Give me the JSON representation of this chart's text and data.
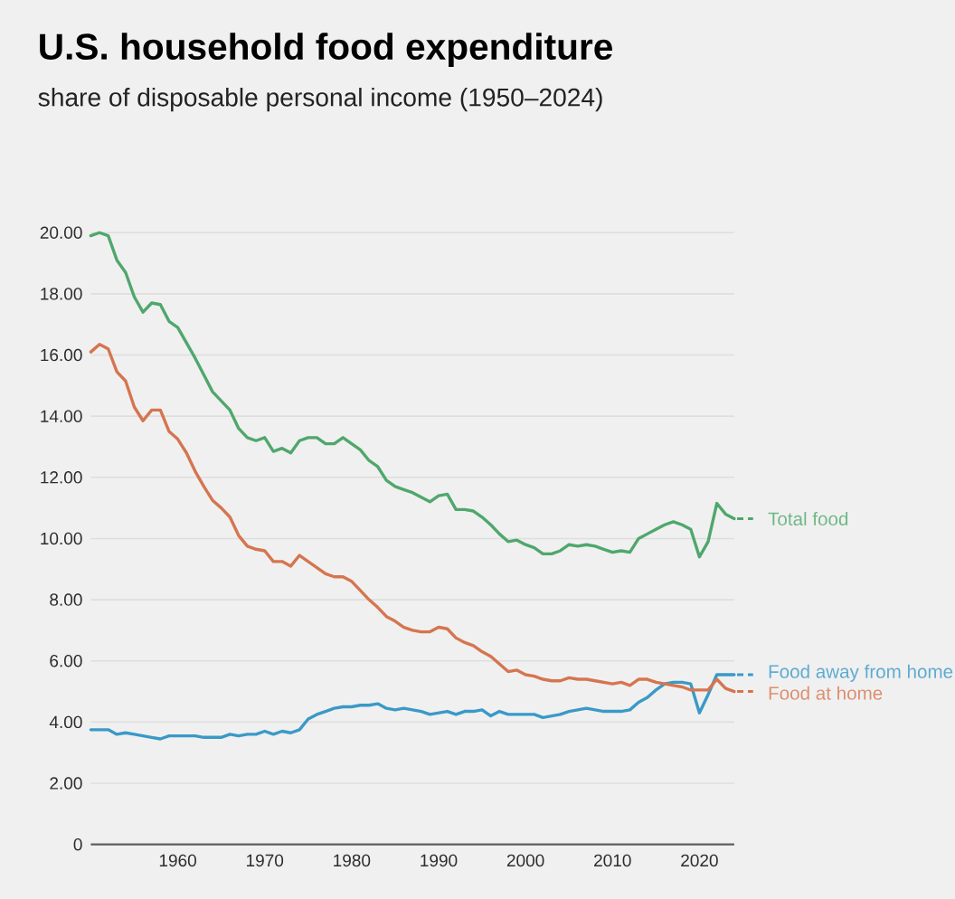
{
  "chart_data": {
    "type": "line",
    "title": "U.S. household food expenditure",
    "subtitle": "share of disposable personal income (1950–2024)",
    "x": [
      1950,
      1951,
      1952,
      1953,
      1954,
      1955,
      1956,
      1957,
      1958,
      1959,
      1960,
      1961,
      1962,
      1963,
      1964,
      1965,
      1966,
      1967,
      1968,
      1969,
      1970,
      1971,
      1972,
      1973,
      1974,
      1975,
      1976,
      1977,
      1978,
      1979,
      1980,
      1981,
      1982,
      1983,
      1984,
      1985,
      1986,
      1987,
      1988,
      1989,
      1990,
      1991,
      1992,
      1993,
      1994,
      1995,
      1996,
      1997,
      1998,
      1999,
      2000,
      2001,
      2002,
      2003,
      2004,
      2005,
      2006,
      2007,
      2008,
      2009,
      2010,
      2011,
      2012,
      2013,
      2014,
      2015,
      2016,
      2017,
      2018,
      2019,
      2020,
      2021,
      2022,
      2023,
      2024
    ],
    "series": [
      {
        "name": "Total food",
        "color": "#4fa76c",
        "values": [
          19.9,
          20.0,
          19.9,
          19.1,
          18.7,
          17.9,
          17.4,
          17.7,
          17.65,
          17.1,
          16.9,
          16.4,
          15.9,
          15.35,
          14.8,
          14.5,
          14.2,
          13.6,
          13.3,
          13.2,
          13.3,
          12.85,
          12.95,
          12.8,
          13.2,
          13.3,
          13.3,
          13.1,
          13.1,
          13.3,
          13.1,
          12.9,
          12.55,
          12.35,
          11.9,
          11.7,
          11.6,
          11.5,
          11.35,
          11.2,
          11.4,
          11.45,
          10.95,
          10.95,
          10.9,
          10.7,
          10.45,
          10.15,
          9.9,
          9.95,
          9.8,
          9.7,
          9.5,
          9.5,
          9.6,
          9.8,
          9.75,
          9.8,
          9.75,
          9.65,
          9.55,
          9.6,
          9.55,
          10.0,
          10.15,
          10.3,
          10.45,
          10.55,
          10.45,
          10.3,
          9.4,
          9.9,
          11.15,
          10.8,
          10.65
        ]
      },
      {
        "name": "Food away from home",
        "color": "#3a99c7",
        "values": [
          3.75,
          3.75,
          3.75,
          3.6,
          3.65,
          3.6,
          3.55,
          3.5,
          3.45,
          3.55,
          3.55,
          3.55,
          3.55,
          3.5,
          3.5,
          3.5,
          3.6,
          3.55,
          3.6,
          3.6,
          3.7,
          3.6,
          3.7,
          3.65,
          3.75,
          4.1,
          4.25,
          4.35,
          4.45,
          4.5,
          4.5,
          4.55,
          4.55,
          4.6,
          4.45,
          4.4,
          4.45,
          4.4,
          4.35,
          4.25,
          4.3,
          4.35,
          4.25,
          4.35,
          4.35,
          4.4,
          4.2,
          4.35,
          4.25,
          4.25,
          4.25,
          4.25,
          4.15,
          4.2,
          4.25,
          4.35,
          4.4,
          4.45,
          4.4,
          4.35,
          4.35,
          4.35,
          4.4,
          4.65,
          4.8,
          5.05,
          5.25,
          5.3,
          5.3,
          5.25,
          4.3,
          4.9,
          5.55,
          5.55,
          5.55
        ]
      },
      {
        "name": "Food at home",
        "color": "#d5754f",
        "values": [
          16.1,
          16.35,
          16.2,
          15.45,
          15.15,
          14.3,
          13.85,
          14.2,
          14.2,
          13.5,
          13.25,
          12.8,
          12.2,
          11.7,
          11.25,
          11.0,
          10.7,
          10.1,
          9.75,
          9.65,
          9.6,
          9.25,
          9.25,
          9.1,
          9.45,
          9.25,
          9.05,
          8.85,
          8.75,
          8.75,
          8.6,
          8.3,
          8.0,
          7.75,
          7.45,
          7.3,
          7.1,
          7.0,
          6.95,
          6.95,
          7.1,
          7.05,
          6.75,
          6.6,
          6.5,
          6.3,
          6.15,
          5.9,
          5.65,
          5.7,
          5.55,
          5.5,
          5.4,
          5.35,
          5.35,
          5.45,
          5.4,
          5.4,
          5.35,
          5.3,
          5.25,
          5.3,
          5.2,
          5.4,
          5.4,
          5.3,
          5.25,
          5.2,
          5.15,
          5.05,
          5.05,
          5.05,
          5.4,
          5.1,
          5.0
        ]
      }
    ],
    "xlim": [
      1950,
      2024
    ],
    "ylim": [
      0,
      20
    ],
    "xticks": [
      1960,
      1970,
      1980,
      1990,
      2000,
      2010,
      2020
    ],
    "yticks": [
      {
        "value": 0,
        "label": "0"
      },
      {
        "value": 2,
        "label": "2.00"
      },
      {
        "value": 4,
        "label": "4.00"
      },
      {
        "value": 6,
        "label": "6.00"
      },
      {
        "value": 8,
        "label": "8.00"
      },
      {
        "value": 10,
        "label": "10.00"
      },
      {
        "value": 12,
        "label": "12.00"
      },
      {
        "value": 14,
        "label": "14.00"
      },
      {
        "value": 16,
        "label": "16.00"
      },
      {
        "value": 18,
        "label": "18.00"
      },
      {
        "value": 20,
        "label": "20.00"
      }
    ],
    "grid": "y",
    "legend": "right"
  }
}
